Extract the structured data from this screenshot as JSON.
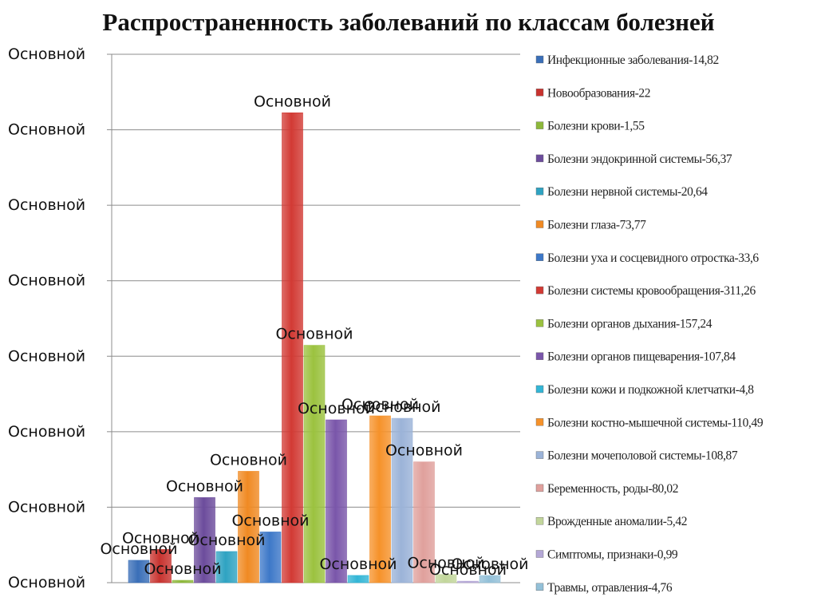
{
  "chart_data": {
    "type": "bar",
    "title": "Распространенность заболеваний по классам болезней",
    "ylim": [
      0,
      350
    ],
    "grid": true,
    "legend_position": "right",
    "ytick_labels": [
      "Основной",
      "Основной",
      "Основной",
      "Основной",
      "Основной",
      "Основной",
      "Основной",
      "Основной"
    ],
    "series": [
      {
        "name": "Инфекционные заболевания-14,82",
        "value": 14.82,
        "color": "#3a6fb8",
        "data_label": "Основной"
      },
      {
        "name": "Новообразования-22",
        "value": 22,
        "color": "#c8332f",
        "data_label": "Основной"
      },
      {
        "name": "Болезни крови-1,55",
        "value": 1.55,
        "color": "#8db83a",
        "data_label": "Основной"
      },
      {
        "name": "Болезни эндокринной системы-56,37",
        "value": 56.37,
        "color": "#6c4c9c",
        "data_label": "Основной"
      },
      {
        "name": "Болезни нервной системы-20,64",
        "value": 20.64,
        "color": "#2fa3c2",
        "data_label": "Основной"
      },
      {
        "name": "Болезни глаза-73,77",
        "value": 73.77,
        "color": "#f08a23",
        "data_label": "Основной"
      },
      {
        "name": "Болезни уха и сосцевидного отростка-33,6",
        "value": 33.6,
        "color": "#3d78c8",
        "data_label": "Основной"
      },
      {
        "name": "Болезни системы кровообращения-311,26",
        "value": 311.26,
        "color": "#d23a34",
        "data_label": "Основной"
      },
      {
        "name": "Болезни органов дыхания-157,24",
        "value": 157.24,
        "color": "#9bc23f",
        "data_label": "Основной"
      },
      {
        "name": "Болезни органов пищеварения-107,84",
        "value": 107.84,
        "color": "#7a56aa",
        "data_label": "Основной"
      },
      {
        "name": "Болезни кожи и подкожной клетчатки-4,8",
        "value": 4.8,
        "color": "#33b6d6",
        "data_label": "Основной"
      },
      {
        "name": "Болезни костно-мышечной системы-110,49",
        "value": 110.49,
        "color": "#f6922a",
        "data_label": "Основной"
      },
      {
        "name": "Болезни мочеполовой системы-108,87",
        "value": 108.87,
        "color": "#9bb3d8",
        "data_label": "Основной"
      },
      {
        "name": "Беременность, роды-80,02",
        "value": 80.02,
        "color": "#e0a09c",
        "data_label": "Основной"
      },
      {
        "name": "Врожденные аномалии-5,42",
        "value": 5.42,
        "color": "#c2d69b",
        "data_label": "Основной"
      },
      {
        "name": "Симптомы, признаки-0,99",
        "value": 0.99,
        "color": "#b4a7d6",
        "data_label": "Основной"
      },
      {
        "name": "Травмы, отравления-4,76",
        "value": 4.76,
        "color": "#93c0d8",
        "data_label": "Основной"
      }
    ]
  }
}
